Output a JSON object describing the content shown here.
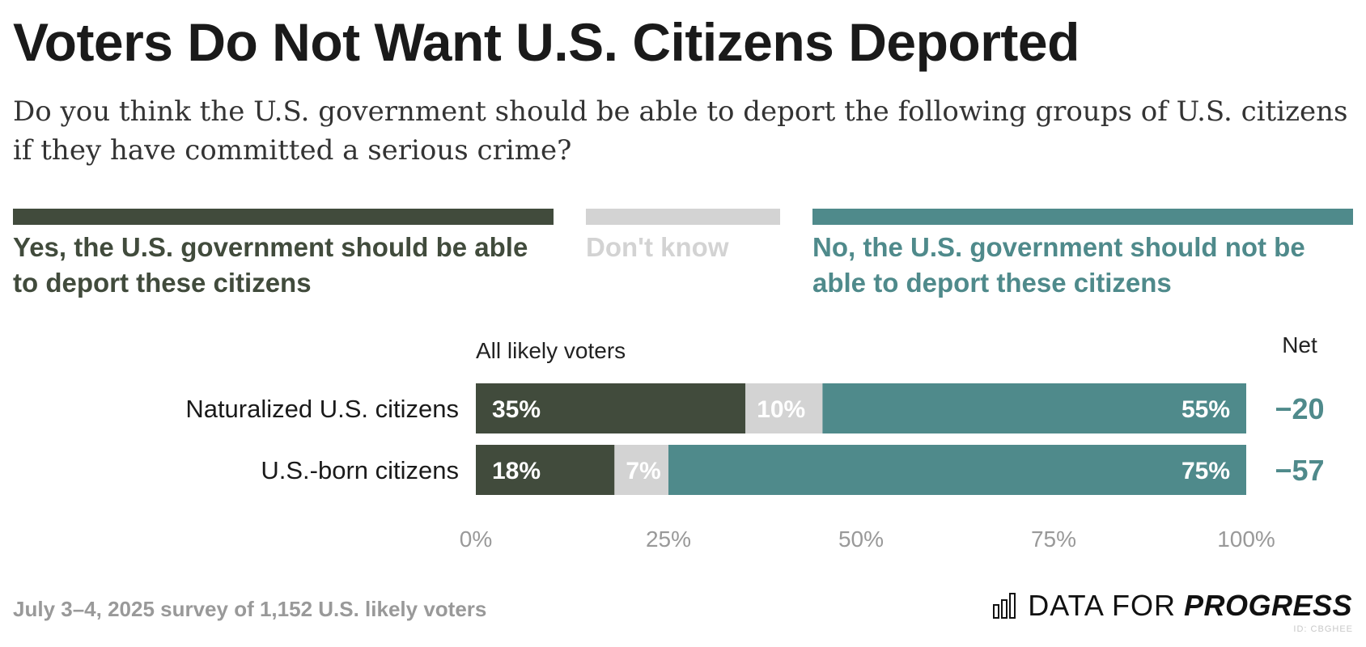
{
  "title": "Voters Do Not Want U.S. Citizens Deported",
  "subtitle": "Do you think the U.S. government should be able to deport the following groups of U.S. citizens if they have committed a serious crime?",
  "colors": {
    "yes": "#414b3c",
    "dont_know": "#d3d3d3",
    "no": "#4f8a8b",
    "axis_text": "#999999"
  },
  "legend": [
    {
      "key": "yes",
      "label": "Yes, the U.S. government should be able to deport these citizens"
    },
    {
      "key": "dont_know",
      "label": "Don't know"
    },
    {
      "key": "no",
      "label": "No, the U.S. government should not be able to deport these citizens"
    }
  ],
  "chart_data": {
    "type": "bar",
    "orientation": "horizontal-stacked",
    "group_label": "All likely voters",
    "net_header": "Net",
    "categories": [
      "Naturalized U.S. citizens",
      "U.S.-born citizens"
    ],
    "series": [
      {
        "name": "Yes",
        "values": [
          35,
          18
        ],
        "labels": [
          "35%",
          "18%"
        ]
      },
      {
        "name": "Don't know",
        "values": [
          10,
          7
        ],
        "labels": [
          "10%",
          "7%"
        ]
      },
      {
        "name": "No",
        "values": [
          55,
          75
        ],
        "labels": [
          "55%",
          "75%"
        ]
      }
    ],
    "net": [
      "−20",
      "−57"
    ],
    "xlim": [
      0,
      100
    ],
    "xticks": [
      "0%",
      "25%",
      "50%",
      "75%",
      "100%"
    ],
    "xtick_values": [
      0,
      25,
      50,
      75,
      100
    ]
  },
  "footer": {
    "source": "July 3–4, 2025 survey of 1,152 U.S. likely voters",
    "brand_light": "DATA FOR",
    "brand_bold": "PROGRESS",
    "brand_id": "ID: CBGHEE"
  }
}
